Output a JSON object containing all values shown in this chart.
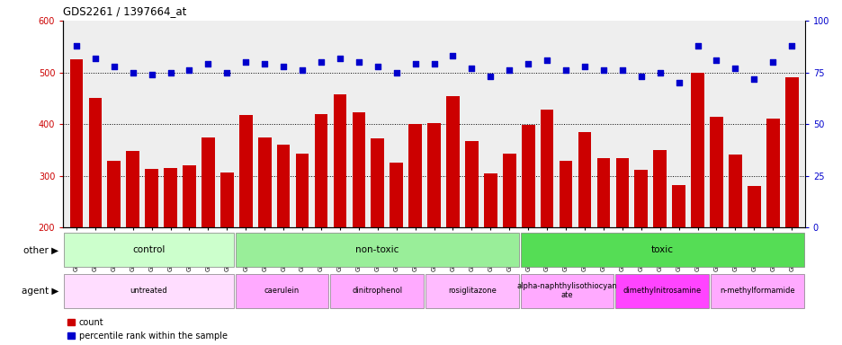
{
  "title": "GDS2261 / 1397664_at",
  "samples": [
    "GSM127079",
    "GSM127080",
    "GSM127081",
    "GSM127082",
    "GSM127083",
    "GSM127084",
    "GSM127085",
    "GSM127086",
    "GSM127087",
    "GSM127054",
    "GSM127055",
    "GSM127056",
    "GSM127057",
    "GSM127058",
    "GSM127064",
    "GSM127065",
    "GSM127066",
    "GSM127067",
    "GSM127068",
    "GSM127074",
    "GSM127075",
    "GSM127076",
    "GSM127077",
    "GSM127078",
    "GSM127049",
    "GSM127050",
    "GSM127051",
    "GSM127052",
    "GSM127053",
    "GSM127059",
    "GSM127060",
    "GSM127061",
    "GSM127062",
    "GSM127063",
    "GSM127069",
    "GSM127070",
    "GSM127071",
    "GSM127072",
    "GSM127073"
  ],
  "counts": [
    525,
    450,
    330,
    348,
    313,
    315,
    320,
    374,
    307,
    418,
    375,
    360,
    343,
    420,
    458,
    423,
    373,
    325,
    400,
    402,
    455,
    367,
    305,
    343,
    398,
    428,
    330,
    385,
    334,
    335,
    312,
    350,
    282,
    499,
    415,
    342,
    280,
    410,
    490
  ],
  "percentile_ranks": [
    88,
    82,
    78,
    75,
    74,
    75,
    76,
    79,
    75,
    80,
    79,
    78,
    76,
    80,
    82,
    80,
    78,
    75,
    79,
    79,
    83,
    77,
    73,
    76,
    79,
    81,
    76,
    78,
    76,
    76,
    73,
    75,
    70,
    88,
    81,
    77,
    72,
    80,
    88
  ],
  "ylim_left": [
    200,
    600
  ],
  "ylim_right": [
    0,
    100
  ],
  "yticks_left": [
    200,
    300,
    400,
    500,
    600
  ],
  "yticks_right": [
    0,
    25,
    50,
    75,
    100
  ],
  "bar_color": "#cc0000",
  "dot_color": "#0000cc",
  "bg_color": "#ffffff",
  "other_groups": [
    {
      "label": "control",
      "start": 0,
      "end": 9,
      "color": "#ccffcc"
    },
    {
      "label": "non-toxic",
      "start": 9,
      "end": 24,
      "color": "#99ee99"
    },
    {
      "label": "toxic",
      "start": 24,
      "end": 39,
      "color": "#55dd55"
    }
  ],
  "agent_groups": [
    {
      "label": "untreated",
      "start": 0,
      "end": 9,
      "color": "#ffddff"
    },
    {
      "label": "caerulein",
      "start": 9,
      "end": 14,
      "color": "#ffaaff"
    },
    {
      "label": "dinitrophenol",
      "start": 14,
      "end": 19,
      "color": "#ffaaff"
    },
    {
      "label": "rosiglitazone",
      "start": 19,
      "end": 24,
      "color": "#ffbbff"
    },
    {
      "label": "alpha-naphthylisothiocyan\nate",
      "start": 24,
      "end": 29,
      "color": "#ffaaff"
    },
    {
      "label": "dimethylnitrosamine",
      "start": 29,
      "end": 34,
      "color": "#ff44ff"
    },
    {
      "label": "n-methylformamide",
      "start": 34,
      "end": 39,
      "color": "#ffaaff"
    }
  ],
  "legend_count_label": "count",
  "legend_pct_label": "percentile rank within the sample",
  "other_row_label": "other",
  "agent_row_label": "agent"
}
